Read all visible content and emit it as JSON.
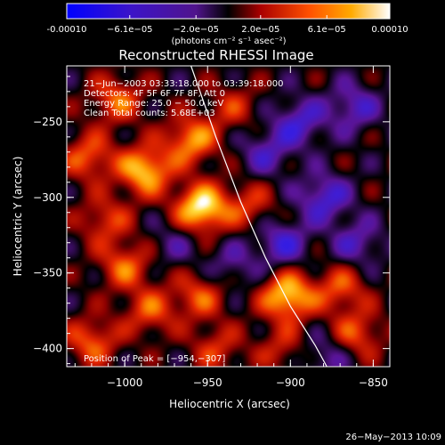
{
  "colorbar": {
    "tick_labels": [
      "-0.00010",
      "−6.1e−05",
      "−2.0e−05",
      "2.0e−05",
      "6.1e−05",
      "0.00010"
    ],
    "tick_values": [
      -0.0001,
      -6.1e-05,
      -2e-05,
      2e-05,
      6.1e-05,
      0.0001
    ],
    "range": [
      -0.0001,
      0.0001
    ],
    "units_label": "(photons cm⁻² s⁻¹ asec⁻²)"
  },
  "chart_data": {
    "type": "heatmap",
    "title": "Reconstructed RHESSI Image",
    "xlabel": "Heliocentric X (arcsec)",
    "ylabel": "Heliocentric Y (arcsec)",
    "xlim": [
      -1035,
      -840
    ],
    "ylim": [
      -412,
      -213
    ],
    "x_ticks": [
      -1000,
      -950,
      -900,
      -850
    ],
    "y_ticks": [
      -250,
      -300,
      -350,
      -400
    ],
    "x_tick_labels": [
      "−1000",
      "−950",
      "−900",
      "−850"
    ],
    "y_tick_labels": [
      "−250",
      "−300",
      "−350",
      "−400"
    ],
    "info_lines": [
      "21−Jun−2003 03:33:18.000 to 03:39:18.000",
      "Detectors: 4F 5F 6F 7F 8F, Att 0",
      "Energy Range: 25.0 − 50.0 keV",
      "Clean    Total counts: 5.68E+03"
    ],
    "peak_label": "Position of Peak = [−954,−307]",
    "peak_position": [
      -954,
      -307
    ],
    "limb_curve": [
      [
        -960,
        -213
      ],
      [
        -945,
        -260
      ],
      [
        -930,
        -303
      ],
      [
        -915,
        -340
      ],
      [
        -900,
        -372
      ],
      [
        -885,
        -398
      ],
      [
        -878,
        -412
      ]
    ],
    "sources": [
      {
        "x": -954,
        "y": -307,
        "amp": 1.0
      },
      {
        "x": -988,
        "y": -282,
        "amp": 0.85
      },
      {
        "x": -960,
        "y": -262,
        "amp": 0.7
      },
      {
        "x": -1022,
        "y": -273,
        "amp": 0.55
      },
      {
        "x": -1012,
        "y": -315,
        "amp": 0.45
      },
      {
        "x": -1000,
        "y": -345,
        "amp": 0.55
      },
      {
        "x": -985,
        "y": -375,
        "amp": 0.5
      },
      {
        "x": -955,
        "y": -365,
        "amp": 0.5
      },
      {
        "x": -1020,
        "y": -395,
        "amp": 0.55
      },
      {
        "x": -925,
        "y": -305,
        "amp": 0.4
      },
      {
        "x": -935,
        "y": -240,
        "amp": 0.35
      },
      {
        "x": -1005,
        "y": -235,
        "amp": 0.55
      },
      {
        "x": -902,
        "y": -365,
        "amp": 0.9
      },
      {
        "x": -870,
        "y": -360,
        "amp": 0.5
      },
      {
        "x": -860,
        "y": -390,
        "amp": 0.5
      },
      {
        "x": -945,
        "y": -400,
        "amp": 0.4
      },
      {
        "x": -905,
        "y": -400,
        "amp": 0.35
      },
      {
        "x": -880,
        "y": -300,
        "amp": -0.55
      },
      {
        "x": -895,
        "y": -250,
        "amp": -0.5
      },
      {
        "x": -862,
        "y": -240,
        "amp": -0.45
      },
      {
        "x": -915,
        "y": -270,
        "amp": -0.4
      },
      {
        "x": -905,
        "y": -330,
        "amp": -0.5
      },
      {
        "x": -860,
        "y": -330,
        "amp": -0.4
      },
      {
        "x": -935,
        "y": -345,
        "amp": -0.3
      },
      {
        "x": -970,
        "y": -330,
        "amp": -0.25
      },
      {
        "x": -880,
        "y": -405,
        "amp": -0.35
      }
    ]
  },
  "footer": {
    "timestamp": "26−May−2013 10:09"
  }
}
